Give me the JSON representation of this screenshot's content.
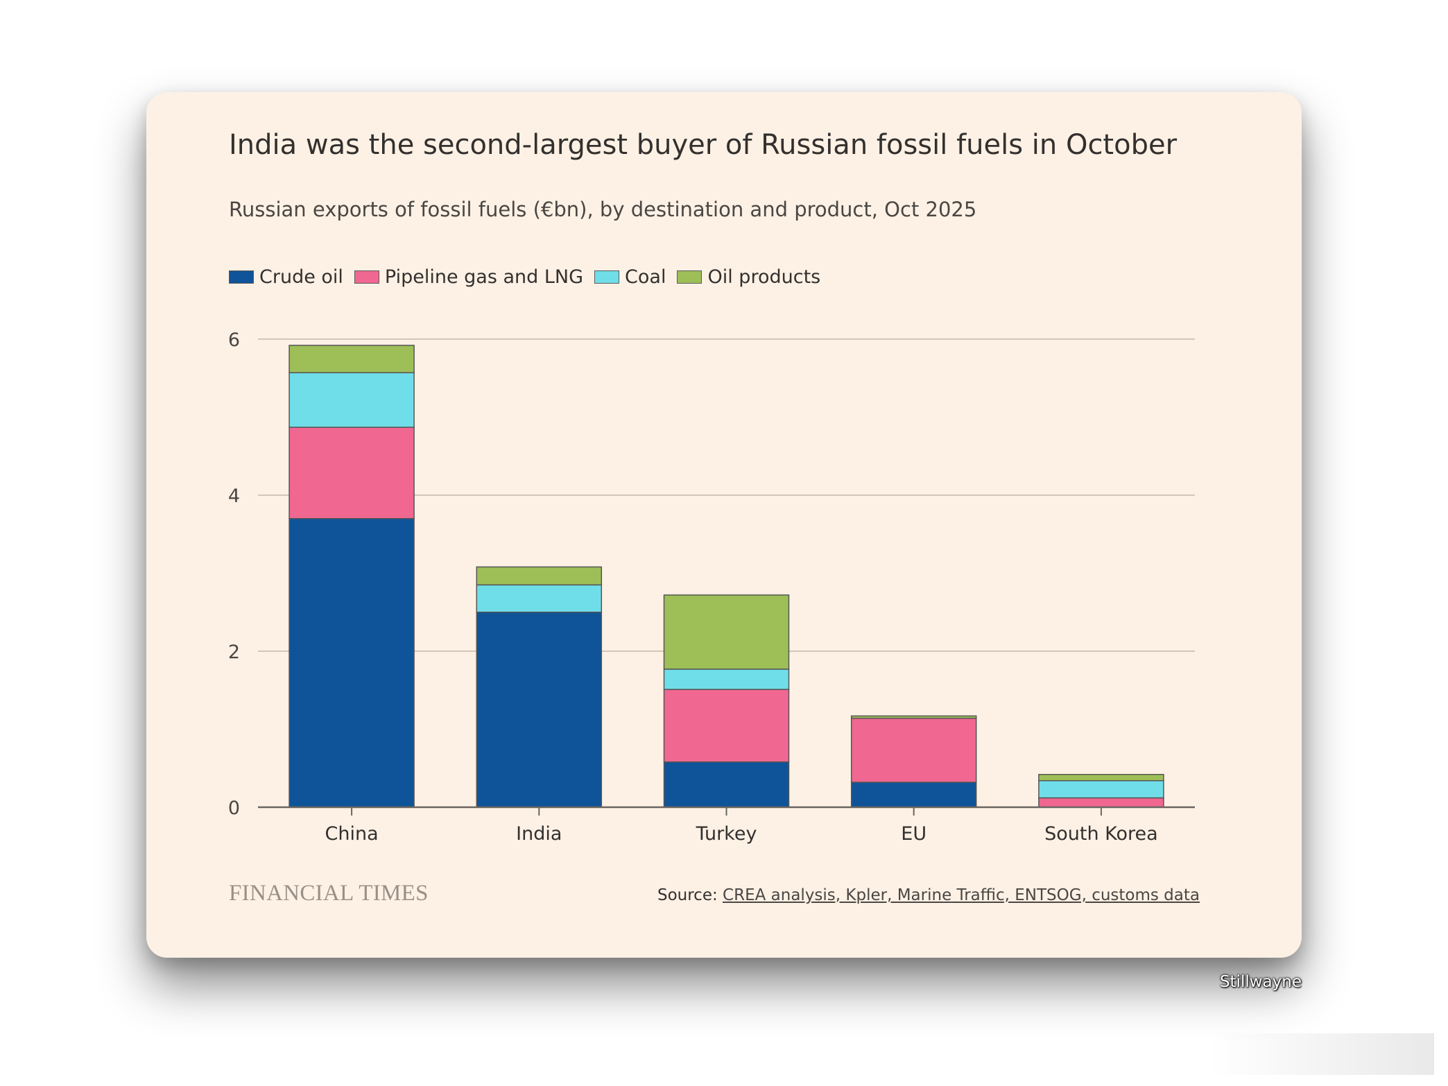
{
  "chart_data": {
    "type": "bar",
    "stacked": true,
    "title": "India was the second-largest buyer of Russian fossil fuels in October",
    "subtitle": "Russian exports of fossil fuels (€bn), by destination and product, Oct 2025",
    "categories": [
      "China",
      "India",
      "Turkey",
      "EU",
      "South Korea"
    ],
    "series": [
      {
        "name": "Crude oil",
        "color": "#0f5499",
        "values": [
          3.7,
          2.5,
          0.58,
          0.32,
          0.0
        ]
      },
      {
        "name": "Pipeline gas and LNG",
        "color": "#f06792",
        "values": [
          1.17,
          0.0,
          0.93,
          0.82,
          0.12
        ]
      },
      {
        "name": "Coal",
        "color": "#70dee9",
        "values": [
          0.7,
          0.35,
          0.26,
          0.0,
          0.22
        ]
      },
      {
        "name": "Oil products",
        "color": "#9ebf57",
        "values": [
          0.35,
          0.23,
          0.95,
          0.03,
          0.08
        ]
      }
    ],
    "yticks": [
      0,
      2,
      4,
      6
    ],
    "ylim": [
      0,
      6
    ],
    "xlabel": "",
    "ylabel": "",
    "grid": true,
    "legend_position": "top-left"
  },
  "legend": [
    {
      "label": "Crude oil",
      "color": "#0f5499"
    },
    {
      "label": "Pipeline gas and LNG",
      "color": "#f06792"
    },
    {
      "label": "Coal",
      "color": "#70dee9"
    },
    {
      "label": "Oil products",
      "color": "#9ebf57"
    }
  ],
  "footer": {
    "logo": "FINANCIAL TIMES",
    "source_prefix": "Source: ",
    "source_link": "CREA analysis, Kpler, Marine Traffic, ENTSOG, customs data"
  },
  "watermark": "Stillwayne"
}
